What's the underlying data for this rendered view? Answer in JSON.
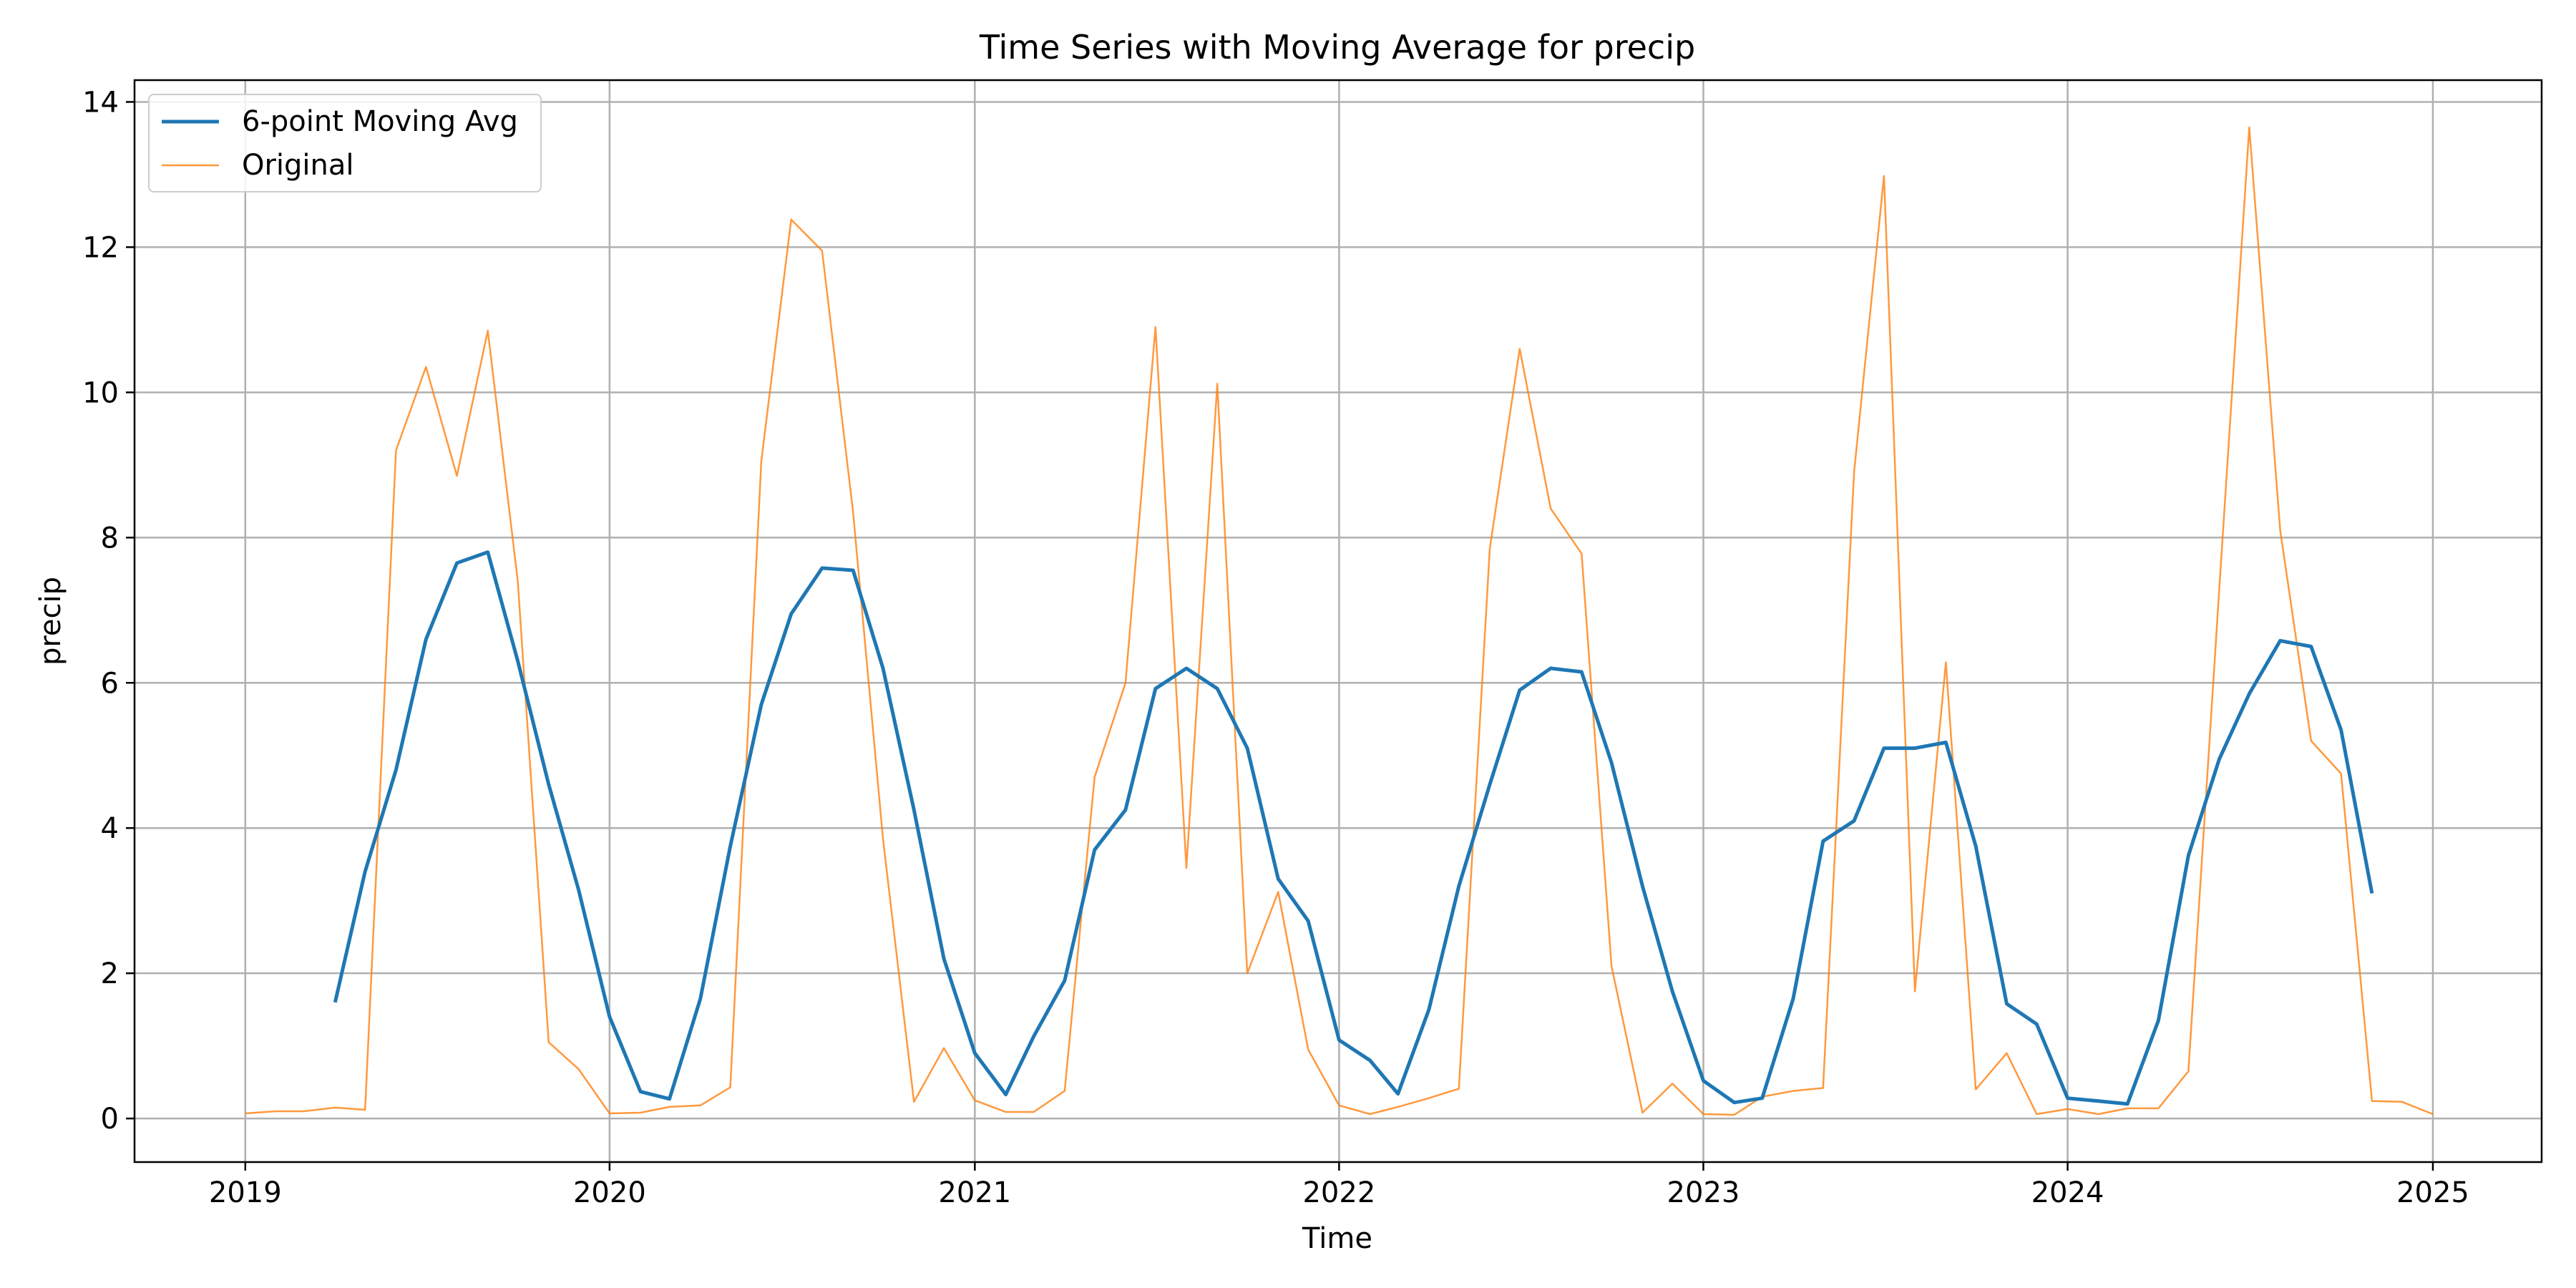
{
  "chart_data": {
    "type": "line",
    "title": "Time Series with Moving Average for precip",
    "xlabel": "Time",
    "ylabel": "precip",
    "x_axis": "date",
    "xlim": [
      "2018-09-12",
      "2025-04-20"
    ],
    "ylim": [
      -0.6,
      14.3
    ],
    "x_ticks": [
      "2019",
      "2020",
      "2021",
      "2022",
      "2023",
      "2024",
      "2025"
    ],
    "y_ticks": [
      "0",
      "2",
      "4",
      "6",
      "8",
      "10",
      "12",
      "14"
    ],
    "grid": true,
    "legend_position": "top-left",
    "colors": {
      "moving_avg": "#1f77b4",
      "original": "#ff7f0e",
      "grid": "#b0b0b0"
    },
    "series": [
      {
        "name": "6-point Moving Avg",
        "color": "#1f77b4",
        "points": [
          [
            "2019-04-01",
            1.6
          ],
          [
            "2019-05-01",
            3.4
          ],
          [
            "2019-06-01",
            4.8
          ],
          [
            "2019-07-01",
            6.6
          ],
          [
            "2019-08-01",
            7.65
          ],
          [
            "2019-09-01",
            7.8
          ],
          [
            "2019-10-01",
            6.3
          ],
          [
            "2019-11-01",
            4.6
          ],
          [
            "2019-12-01",
            3.15
          ],
          [
            "2020-01-01",
            1.4
          ],
          [
            "2020-02-01",
            0.37
          ],
          [
            "2020-03-01",
            0.27
          ],
          [
            "2020-04-01",
            1.65
          ],
          [
            "2020-05-01",
            3.75
          ],
          [
            "2020-06-01",
            5.7
          ],
          [
            "2020-07-01",
            6.95
          ],
          [
            "2020-08-01",
            7.58
          ],
          [
            "2020-09-01",
            7.55
          ],
          [
            "2020-10-01",
            6.2
          ],
          [
            "2020-11-01",
            4.25
          ],
          [
            "2020-12-01",
            2.2
          ],
          [
            "2021-01-01",
            0.9
          ],
          [
            "2021-02-01",
            0.33
          ],
          [
            "2021-03-01",
            1.13
          ],
          [
            "2021-04-01",
            1.9
          ],
          [
            "2021-05-01",
            3.7
          ],
          [
            "2021-06-01",
            4.25
          ],
          [
            "2021-07-01",
            5.92
          ],
          [
            "2021-08-01",
            6.2
          ],
          [
            "2021-09-01",
            5.92
          ],
          [
            "2021-10-01",
            5.1
          ],
          [
            "2021-11-01",
            3.3
          ],
          [
            "2021-12-01",
            2.72
          ],
          [
            "2022-01-01",
            1.08
          ],
          [
            "2022-02-01",
            0.8
          ],
          [
            "2022-03-01",
            0.34
          ],
          [
            "2022-04-01",
            1.5
          ],
          [
            "2022-05-01",
            3.2
          ],
          [
            "2022-06-01",
            4.6
          ],
          [
            "2022-07-01",
            5.9
          ],
          [
            "2022-08-01",
            6.2
          ],
          [
            "2022-09-01",
            6.15
          ],
          [
            "2022-10-01",
            4.9
          ],
          [
            "2022-11-01",
            3.2
          ],
          [
            "2022-12-01",
            1.75
          ],
          [
            "2023-01-01",
            0.52
          ],
          [
            "2023-02-01",
            0.22
          ],
          [
            "2023-03-01",
            0.28
          ],
          [
            "2023-04-01",
            1.65
          ],
          [
            "2023-05-01",
            3.82
          ],
          [
            "2023-06-01",
            4.1
          ],
          [
            "2023-07-01",
            5.1
          ],
          [
            "2023-08-01",
            5.1
          ],
          [
            "2023-09-01",
            5.18
          ],
          [
            "2023-10-01",
            3.75
          ],
          [
            "2023-11-01",
            1.58
          ],
          [
            "2023-12-01",
            1.3
          ],
          [
            "2024-01-01",
            0.28
          ],
          [
            "2024-02-01",
            0.24
          ],
          [
            "2024-03-01",
            0.2
          ],
          [
            "2024-04-01",
            1.35
          ],
          [
            "2024-05-01",
            3.62
          ],
          [
            "2024-06-01",
            4.95
          ],
          [
            "2024-07-01",
            5.85
          ],
          [
            "2024-08-01",
            6.58
          ],
          [
            "2024-09-01",
            6.5
          ],
          [
            "2024-10-01",
            5.35
          ],
          [
            "2024-11-01",
            3.1
          ]
        ]
      },
      {
        "name": "Original",
        "color": "#ff7f0e",
        "points": [
          [
            "2019-01-01",
            0.07
          ],
          [
            "2019-02-01",
            0.1
          ],
          [
            "2019-03-01",
            0.1
          ],
          [
            "2019-04-01",
            0.15
          ],
          [
            "2019-05-01",
            0.12
          ],
          [
            "2019-06-01",
            9.2
          ],
          [
            "2019-07-01",
            10.35
          ],
          [
            "2019-08-01",
            8.85
          ],
          [
            "2019-09-01",
            10.85
          ],
          [
            "2019-10-01",
            7.4
          ],
          [
            "2019-11-01",
            1.05
          ],
          [
            "2019-12-01",
            0.68
          ],
          [
            "2020-01-01",
            0.07
          ],
          [
            "2020-02-01",
            0.08
          ],
          [
            "2020-03-01",
            0.16
          ],
          [
            "2020-04-01",
            0.18
          ],
          [
            "2020-05-01",
            0.43
          ],
          [
            "2020-06-01",
            9.05
          ],
          [
            "2020-07-01",
            12.38
          ],
          [
            "2020-08-01",
            11.95
          ],
          [
            "2020-09-01",
            8.35
          ],
          [
            "2020-10-01",
            3.85
          ],
          [
            "2020-11-01",
            0.23
          ],
          [
            "2020-12-01",
            0.97
          ],
          [
            "2021-01-01",
            0.25
          ],
          [
            "2021-02-01",
            0.09
          ],
          [
            "2021-03-01",
            0.09
          ],
          [
            "2021-04-01",
            0.38
          ],
          [
            "2021-05-01",
            4.7
          ],
          [
            "2021-06-01",
            6.0
          ],
          [
            "2021-07-01",
            10.9
          ],
          [
            "2021-08-01",
            3.45
          ],
          [
            "2021-09-01",
            10.12
          ],
          [
            "2021-10-01",
            2.0
          ],
          [
            "2021-11-01",
            3.12
          ],
          [
            "2021-12-01",
            0.95
          ],
          [
            "2022-01-01",
            0.18
          ],
          [
            "2022-02-01",
            0.06
          ],
          [
            "2022-03-01",
            0.16
          ],
          [
            "2022-04-01",
            0.28
          ],
          [
            "2022-05-01",
            0.41
          ],
          [
            "2022-06-01",
            7.85
          ],
          [
            "2022-07-01",
            10.6
          ],
          [
            "2022-08-01",
            8.4
          ],
          [
            "2022-09-01",
            7.78
          ],
          [
            "2022-10-01",
            2.1
          ],
          [
            "2022-11-01",
            0.08
          ],
          [
            "2022-12-01",
            0.48
          ],
          [
            "2023-01-01",
            0.06
          ],
          [
            "2023-02-01",
            0.05
          ],
          [
            "2023-03-01",
            0.3
          ],
          [
            "2023-04-01",
            0.38
          ],
          [
            "2023-05-01",
            0.42
          ],
          [
            "2023-06-01",
            8.9
          ],
          [
            "2023-07-01",
            12.98
          ],
          [
            "2023-08-01",
            1.75
          ],
          [
            "2023-09-01",
            6.28
          ],
          [
            "2023-10-01",
            0.4
          ],
          [
            "2023-11-01",
            0.9
          ],
          [
            "2023-12-01",
            0.06
          ],
          [
            "2024-01-01",
            0.13
          ],
          [
            "2024-02-01",
            0.06
          ],
          [
            "2024-03-01",
            0.14
          ],
          [
            "2024-04-01",
            0.14
          ],
          [
            "2024-05-01",
            0.65
          ],
          [
            "2024-06-01",
            7.3
          ],
          [
            "2024-07-01",
            13.65
          ],
          [
            "2024-08-01",
            8.1
          ],
          [
            "2024-09-01",
            5.2
          ],
          [
            "2024-10-01",
            4.75
          ],
          [
            "2024-11-01",
            0.24
          ],
          [
            "2024-12-01",
            0.23
          ],
          [
            "2025-01-01",
            0.06
          ]
        ]
      }
    ]
  }
}
